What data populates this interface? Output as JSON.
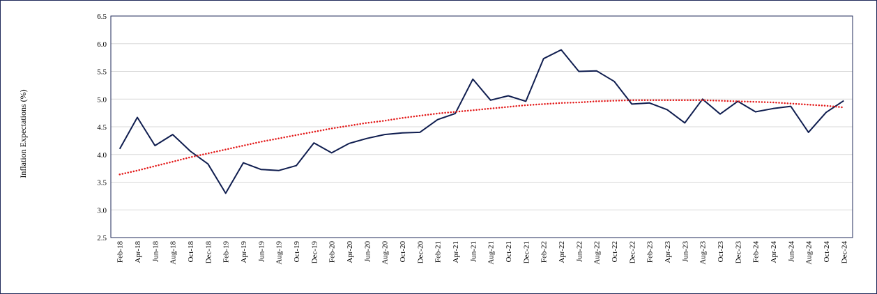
{
  "chart_data": {
    "type": "line",
    "ylabel": "Inflation Expectations (%)",
    "ylim": [
      2.5,
      6.5
    ],
    "yticks": [
      "2.5",
      "3.0",
      "3.5",
      "4.0",
      "4.5",
      "5.0",
      "5.5",
      "6.0",
      "6.5"
    ],
    "categories": [
      "Feb-18",
      "Apr-18",
      "Jun-18",
      "Aug-18",
      "Oct-18",
      "Dec-18",
      "Feb-19",
      "Apr-19",
      "Jun-19",
      "Aug-19",
      "Oct-19",
      "Dec-19",
      "Feb-20",
      "Apr-20",
      "Jun-20",
      "Aug-20",
      "Oct-20",
      "Dec-20",
      "Feb-21",
      "Apr-21",
      "Jun-21",
      "Aug-21",
      "Oct-21",
      "Dec-21",
      "Feb-22",
      "Apr-22",
      "Jun-22",
      "Aug-22",
      "Oct-22",
      "Dec-22",
      "Feb-23",
      "Apr-23",
      "Jun-23",
      "Aug-23",
      "Oct-23",
      "Dec-23",
      "Feb-24",
      "Apr-24",
      "Jun-24",
      "Aug-24",
      "Oct-24",
      "Dec-24"
    ],
    "grid": true,
    "legend": "none",
    "series": [
      {
        "style": "solid",
        "color": "#0f1d4f",
        "values": [
          4.1,
          4.67,
          4.16,
          4.36,
          4.06,
          3.83,
          3.3,
          3.85,
          3.73,
          3.71,
          3.8,
          4.21,
          4.03,
          4.2,
          4.29,
          4.36,
          4.39,
          4.4,
          4.63,
          4.74,
          5.36,
          4.98,
          5.06,
          4.96,
          5.73,
          5.89,
          5.5,
          5.51,
          5.32,
          4.91,
          4.93,
          4.81,
          4.57,
          5.0,
          4.73,
          4.96,
          4.77,
          4.83,
          4.87,
          4.4,
          4.76,
          4.97
        ]
      },
      {
        "style": "dotted",
        "color": "#e31a1a",
        "trendline": "polynomial",
        "values": [
          3.64,
          3.71,
          3.79,
          3.87,
          3.95,
          4.02,
          4.09,
          4.16,
          4.23,
          4.29,
          4.35,
          4.41,
          4.47,
          4.52,
          4.57,
          4.61,
          4.66,
          4.7,
          4.74,
          4.77,
          4.8,
          4.83,
          4.86,
          4.89,
          4.91,
          4.93,
          4.94,
          4.96,
          4.97,
          4.98,
          4.98,
          4.98,
          4.98,
          4.98,
          4.97,
          4.96,
          4.95,
          4.94,
          4.92,
          4.9,
          4.88,
          4.85
        ]
      }
    ]
  },
  "colors": {
    "frame": "#1f2a5a",
    "plot_border": "#1f2a5a",
    "grid": "#d9d9d9"
  }
}
